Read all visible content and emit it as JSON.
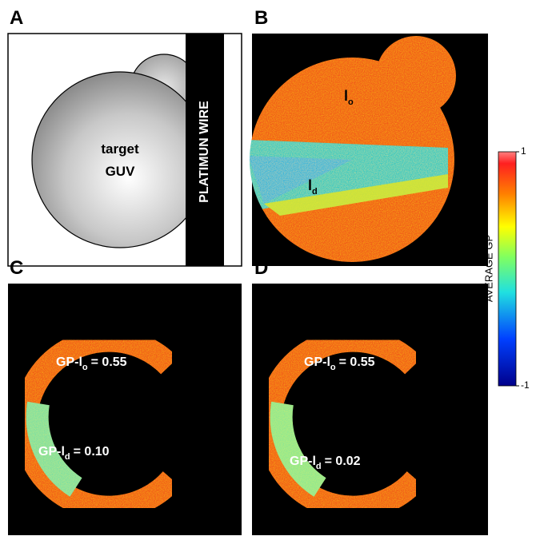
{
  "panels": {
    "a": {
      "letter": "A",
      "guv_label": [
        "target",
        "GUV"
      ],
      "wire_label": "PLATIMUN WIRE"
    },
    "b": {
      "letter": "B",
      "phase_lo": {
        "main": "l",
        "sub": "o"
      },
      "phase_ld": {
        "main": "l",
        "sub": "d"
      }
    },
    "c": {
      "letter": "C",
      "lo_label": {
        "main": "GP-l",
        "sub": "o",
        "rest": "= 0.55"
      },
      "ld_label": {
        "main": "GP-l",
        "sub": "d",
        "rest": "= 0.10"
      }
    },
    "d": {
      "letter": "D",
      "lo_label": {
        "main": "GP-l",
        "sub": "o",
        "rest": "= 0.55"
      },
      "ld_label": {
        "main": "GP-l",
        "sub": "d",
        "rest": "= 0.02"
      }
    }
  },
  "colorbar": {
    "label": "AVERAGE GP",
    "lim": [
      -1,
      1
    ],
    "ticks": [
      -1,
      1
    ]
  }
}
